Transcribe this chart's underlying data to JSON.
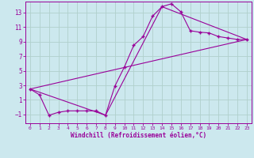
{
  "xlabel": "Windchill (Refroidissement éolien,°C)",
  "background_color": "#cce8ee",
  "line_color": "#990099",
  "grid_color": "#b0d0cc",
  "xlim": [
    -0.5,
    23.5
  ],
  "ylim": [
    -2.2,
    14.5
  ],
  "xticks": [
    0,
    1,
    2,
    3,
    4,
    5,
    6,
    7,
    8,
    9,
    10,
    11,
    12,
    13,
    14,
    15,
    16,
    17,
    18,
    19,
    20,
    21,
    22,
    23
  ],
  "yticks": [
    -1,
    1,
    3,
    5,
    7,
    9,
    11,
    13
  ],
  "series1_x": [
    0,
    1,
    2,
    3,
    4,
    5,
    6,
    7,
    8,
    9,
    10,
    11,
    12,
    13,
    14,
    15,
    16,
    17,
    18,
    19,
    20,
    21,
    22,
    23
  ],
  "series1_y": [
    2.5,
    1.7,
    -1.1,
    -0.7,
    -0.5,
    -0.5,
    -0.5,
    -0.5,
    -1.1,
    2.9,
    5.5,
    8.5,
    9.7,
    12.5,
    13.8,
    14.2,
    13.1,
    10.5,
    10.3,
    10.2,
    9.7,
    9.5,
    9.3,
    9.3
  ],
  "series2_x": [
    0,
    23
  ],
  "series2_y": [
    2.5,
    9.3
  ],
  "series3_x": [
    0,
    8,
    14,
    23
  ],
  "series3_y": [
    2.5,
    -1.1,
    13.8,
    9.3
  ]
}
